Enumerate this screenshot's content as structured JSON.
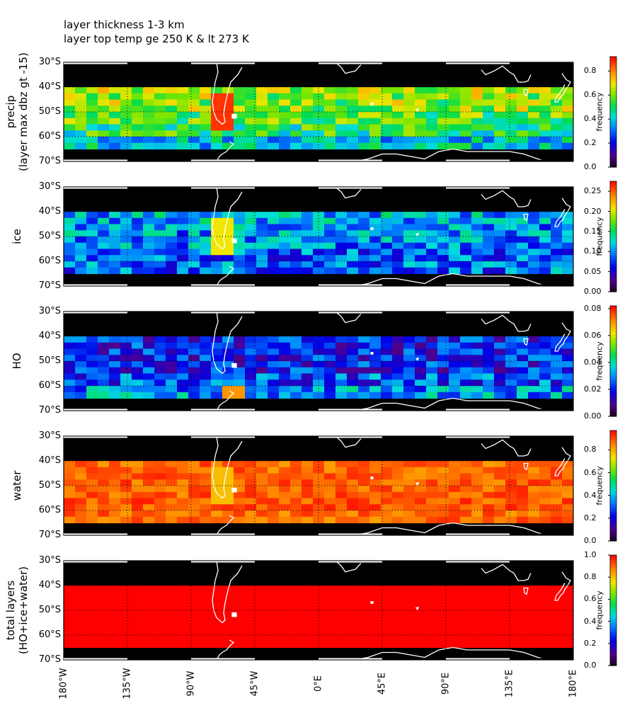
{
  "title_lines": [
    "layer thickness 1-3 km",
    "layer top temp ge 250 K & lt 273 K"
  ],
  "lat_ticks": [
    "30°S",
    "40°S",
    "50°S",
    "60°S",
    "70°S"
  ],
  "lon_ticks": [
    "180°W",
    "135°W",
    "90°W",
    "45°W",
    "0°E",
    "45°E",
    "90°E",
    "135°E",
    "180°E"
  ],
  "colorbar_label": "frequency",
  "chart_data": [
    {
      "type": "heatmap",
      "ylabel": "precip\n(layer max dbz gt -15)",
      "x_range": [
        -180,
        180
      ],
      "y_range": [
        -70,
        -30
      ],
      "data_lat_range": [
        -65,
        -40
      ],
      "colorbar": {
        "min": 0.0,
        "max": 0.92,
        "ticks": [
          "0.0",
          "0.2",
          "0.4",
          "0.6",
          "0.8"
        ],
        "label": "frequency"
      },
      "typical_value": 0.55,
      "lat_profile": [
        {
          "lat": -42.5,
          "value": 0.62
        },
        {
          "lat": -47.5,
          "value": 0.6
        },
        {
          "lat": -52.5,
          "value": 0.55
        },
        {
          "lat": -57.5,
          "value": 0.5
        },
        {
          "lat": -62.5,
          "value": 0.4
        }
      ],
      "highlight": "values up to ~0.9 near 70°W, 45–55°S"
    },
    {
      "type": "heatmap",
      "ylabel": "ice",
      "x_range": [
        -180,
        180
      ],
      "y_range": [
        -70,
        -30
      ],
      "data_lat_range": [
        -65,
        -40
      ],
      "colorbar": {
        "min": 0.0,
        "max": 0.275,
        "ticks": [
          "0.00",
          "0.05",
          "0.10",
          "0.15",
          "0.20",
          "0.25"
        ],
        "label": "frequency"
      },
      "typical_value": 0.1,
      "lat_profile": [
        {
          "lat": -42.5,
          "value": 0.11
        },
        {
          "lat": -47.5,
          "value": 0.1
        },
        {
          "lat": -52.5,
          "value": 0.1
        },
        {
          "lat": -57.5,
          "value": 0.09
        },
        {
          "lat": -62.5,
          "value": 0.09
        }
      ],
      "highlight": "values ~0.2–0.25 near 70°W, 50°S and 170°E, 45°S"
    },
    {
      "type": "heatmap",
      "ylabel": "HO",
      "x_range": [
        -180,
        180
      ],
      "y_range": [
        -70,
        -30
      ],
      "data_lat_range": [
        -65,
        -40
      ],
      "colorbar": {
        "min": 0.0,
        "max": 0.082,
        "ticks": [
          "0.00",
          "0.02",
          "0.04",
          "0.06",
          "0.08"
        ],
        "label": "frequency"
      },
      "typical_value": 0.02,
      "lat_profile": [
        {
          "lat": -42.5,
          "value": 0.02
        },
        {
          "lat": -47.5,
          "value": 0.02
        },
        {
          "lat": -52.5,
          "value": 0.02
        },
        {
          "lat": -57.5,
          "value": 0.025
        },
        {
          "lat": -62.5,
          "value": 0.03
        }
      ],
      "highlight": "values up to ~0.07 near 65°W"
    },
    {
      "type": "heatmap",
      "ylabel": "water",
      "x_range": [
        -180,
        180
      ],
      "y_range": [
        -70,
        -30
      ],
      "data_lat_range": [
        -65,
        -40
      ],
      "colorbar": {
        "min": 0.0,
        "max": 0.97,
        "ticks": [
          "0.0",
          "0.2",
          "0.4",
          "0.6",
          "0.8"
        ],
        "label": "frequency"
      },
      "typical_value": 0.88,
      "lat_profile": [
        {
          "lat": -42.5,
          "value": 0.87
        },
        {
          "lat": -47.5,
          "value": 0.88
        },
        {
          "lat": -52.5,
          "value": 0.88
        },
        {
          "lat": -57.5,
          "value": 0.89
        },
        {
          "lat": -62.5,
          "value": 0.87
        }
      ],
      "highlight": "lower values ~0.75 near 70°W, 50°S"
    },
    {
      "type": "heatmap",
      "ylabel": "total layers\n(HO+ice+water)",
      "x_range": [
        -180,
        180
      ],
      "y_range": [
        -70,
        -30
      ],
      "data_lat_range": [
        -65,
        -40
      ],
      "colorbar": {
        "min": 0.0,
        "max": 1.0,
        "ticks": [
          "0.0",
          "0.2",
          "0.4",
          "0.6",
          "0.8",
          "1.0"
        ],
        "label": "frequency"
      },
      "typical_value": 1.0,
      "lat_profile": [
        {
          "lat": -42.5,
          "value": 1.0
        },
        {
          "lat": -47.5,
          "value": 1.0
        },
        {
          "lat": -52.5,
          "value": 1.0
        },
        {
          "lat": -57.5,
          "value": 1.0
        },
        {
          "lat": -62.5,
          "value": 1.0
        }
      ],
      "highlight": "uniform 1.0"
    }
  ]
}
